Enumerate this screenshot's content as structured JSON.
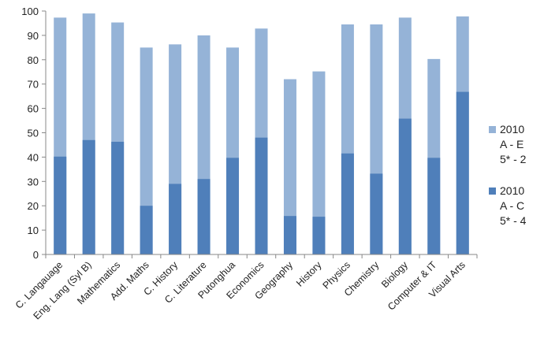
{
  "chart_data": {
    "type": "bar",
    "overlap": true,
    "categories": [
      "C. Langauage",
      "Eng. Lang (Syl B)",
      "Mathematics",
      "Add. Maths",
      "C. History",
      "C. Literature",
      "Putonghua",
      "Economics",
      "Geography",
      "History",
      "Physics",
      "Chemistry",
      "Biology",
      "Computer & IT",
      "Visual Arts"
    ],
    "series": [
      {
        "name": "2010\nA - E\n5* - 2",
        "color": "#95b3d7",
        "values": [
          97.3,
          99,
          95.3,
          85,
          86.3,
          90,
          85,
          92.8,
          72,
          75.2,
          94.5,
          94.5,
          97.3,
          80.3,
          97.8
        ]
      },
      {
        "name": "2010\nA - C\n5* - 4",
        "color": "#4f7fba",
        "values": [
          40.2,
          47,
          46.3,
          20,
          29,
          31,
          39.7,
          48,
          15.8,
          15.5,
          41.5,
          33.2,
          55.8,
          39.7,
          66.8
        ]
      }
    ],
    "ylim": [
      0,
      100
    ],
    "yticks": [
      0,
      10,
      20,
      30,
      40,
      50,
      60,
      70,
      80,
      90,
      100
    ],
    "grid": false,
    "legend": "right"
  }
}
